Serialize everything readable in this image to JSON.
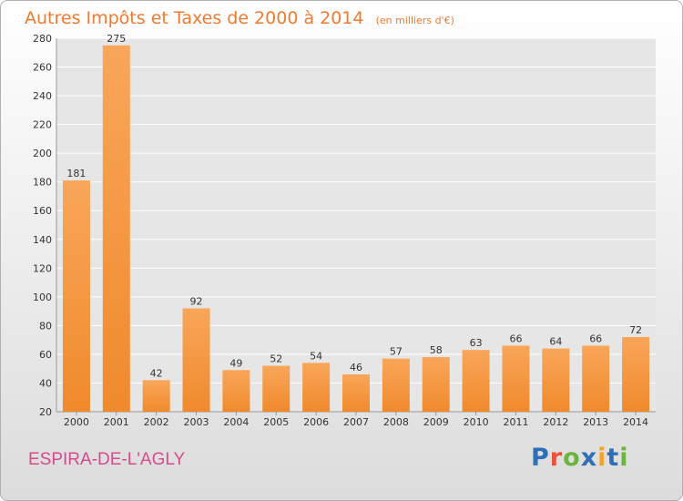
{
  "header": {
    "title": "Autres Impôts et Taxes de 2000 à 2014",
    "subtitle": "(en milliers d'€)"
  },
  "footer": {
    "town": "ESPIRA-DE-L'AGLY",
    "brand_letters": [
      {
        "ch": "P",
        "color": "#2f6fb8"
      },
      {
        "ch": "r",
        "color": "#e8533a"
      },
      {
        "ch": "o",
        "color": "#6cb33f"
      },
      {
        "ch": "x",
        "color": "#2f6fb8"
      },
      {
        "ch": "i",
        "color": "#f2a32b"
      },
      {
        "ch": "t",
        "color": "#2f6fb8"
      },
      {
        "ch": "i",
        "color": "#6cb33f"
      }
    ]
  },
  "chart_data": {
    "type": "bar",
    "categories": [
      "2000",
      "2001",
      "2002",
      "2003",
      "2004",
      "2005",
      "2006",
      "2007",
      "2008",
      "2009",
      "2010",
      "2011",
      "2012",
      "2013",
      "2014"
    ],
    "values": [
      181,
      275,
      42,
      92,
      49,
      52,
      54,
      46,
      57,
      58,
      63,
      66,
      64,
      66,
      72
    ],
    "ylim": [
      20,
      280
    ],
    "yticks": [
      20,
      40,
      60,
      80,
      100,
      120,
      140,
      160,
      180,
      200,
      220,
      240,
      260,
      280
    ],
    "grid": true,
    "bar_color": "#f08a2c",
    "bar_color_light": "#f9a65a"
  }
}
